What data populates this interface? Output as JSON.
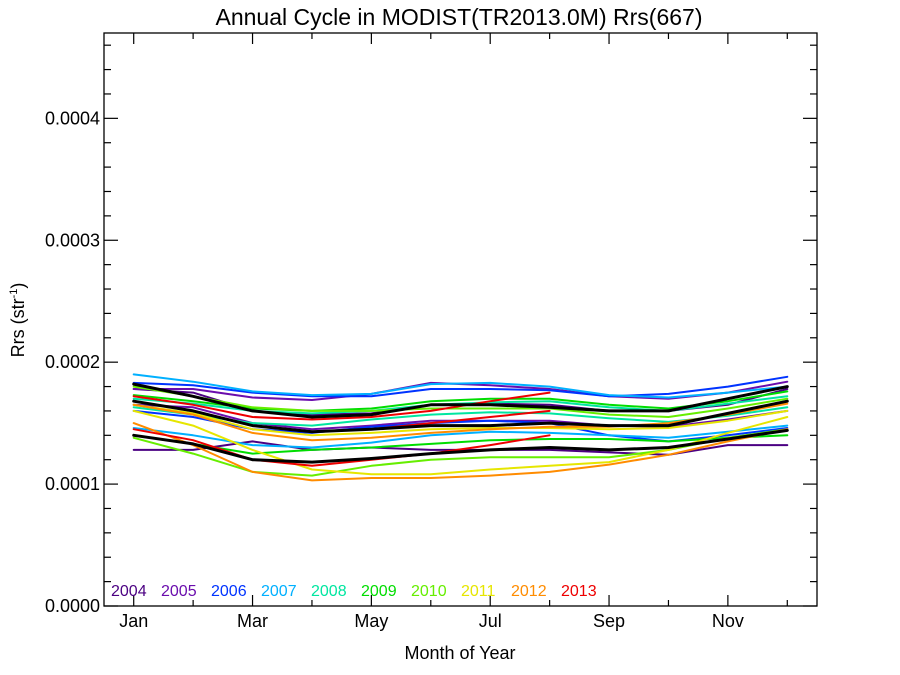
{
  "chart_data": {
    "type": "line",
    "title": "Annual Cycle in MODIST(TR2013.0M) Rrs(667)",
    "xlabel": "Month of Year",
    "ylabel_main": "Rrs (str",
    "ylabel_sup": "-1",
    "ylabel_close": ")",
    "xlim": [
      0.5,
      12.5
    ],
    "ylim": [
      0,
      0.00047
    ],
    "x_ticks": [
      {
        "value": 1,
        "label": "Jan"
      },
      {
        "value": 3,
        "label": "Mar"
      },
      {
        "value": 5,
        "label": "May"
      },
      {
        "value": 7,
        "label": "Jul"
      },
      {
        "value": 9,
        "label": "Sep"
      },
      {
        "value": 11,
        "label": "Nov"
      }
    ],
    "y_ticks": [
      {
        "value": 0.0,
        "label": "0.0000"
      },
      {
        "value": 0.0001,
        "label": "0.0001"
      },
      {
        "value": 0.0002,
        "label": "0.0002"
      },
      {
        "value": 0.0003,
        "label": "0.0003"
      },
      {
        "value": 0.0004,
        "label": "0.0004"
      }
    ],
    "legend_position": "bottom-left, inside plot",
    "series": [
      {
        "name": "2004",
        "color": "#4b0082",
        "lines": [
          [
            0.000128,
            0.000128,
            0.000135,
            0.000128,
            0.00013,
            0.000128,
            0.000128,
            0.000128,
            0.000126,
            0.000124,
            0.000132,
            0.000132
          ],
          [
            0.000178,
            0.000175,
            0.00016,
            0.000157,
            0.000158,
            0.000165,
            0.000166,
            0.000165,
            0.00016,
            0.00016,
            0.000165,
            0.000178
          ]
        ]
      },
      {
        "name": "2005",
        "color": "#6a0dad",
        "lines": [
          [
            0.000178,
            0.000178,
            0.000171,
            0.000169,
            0.000174,
            0.000183,
            0.000181,
            0.000178,
            0.000172,
            0.00017,
            0.000175,
            0.000184
          ],
          [
            0.000165,
            0.000163,
            0.00015,
            0.000145,
            0.000148,
            0.000152,
            0.000152,
            0.000152,
            0.000148,
            0.000147,
            0.000153,
            0.00016
          ]
        ]
      },
      {
        "name": "2006",
        "color": "#0033ff",
        "lines": [
          [
            0.000183,
            0.000181,
            0.000175,
            0.000172,
            0.000172,
            0.000178,
            0.000178,
            0.000177,
            0.000172,
            0.000174,
            0.00018,
            0.000188
          ],
          [
            0.00016,
            0.000155,
            0.000145,
            0.000142,
            0.000147,
            0.00015,
            0.000152,
            0.00015,
            0.00014,
            0.000135,
            0.00014,
            0.000146
          ]
        ]
      },
      {
        "name": "2007",
        "color": "#00b0ff",
        "lines": [
          [
            0.00019,
            0.000184,
            0.000176,
            0.000173,
            0.000174,
            0.000182,
            0.000183,
            0.00018,
            0.000173,
            0.000171,
            0.000175,
            0.00018
          ],
          [
            0.000146,
            0.00014,
            0.000132,
            0.00013,
            0.000134,
            0.00014,
            0.000143,
            0.000142,
            0.00014,
            0.000138,
            0.000143,
            0.000148
          ]
        ]
      },
      {
        "name": "2008",
        "color": "#00e6a0",
        "lines": [
          [
            0.00017,
            0.000166,
            0.00016,
            0.000158,
            0.00016,
            0.000165,
            0.000167,
            0.000168,
            0.000163,
            0.00016,
            0.000166,
            0.000172
          ],
          [
            0.000163,
            0.000157,
            0.00015,
            0.000148,
            0.000153,
            0.000157,
            0.000159,
            0.000158,
            0.000154,
            0.000151,
            0.000156,
            0.000163
          ]
        ]
      },
      {
        "name": "2009",
        "color": "#00dd00",
        "lines": [
          [
            0.000173,
            0.000168,
            0.000162,
            0.00016,
            0.000162,
            0.000168,
            0.00017,
            0.00017,
            0.000165,
            0.000162,
            0.000168,
            0.000176
          ],
          [
            0.00014,
            0.000133,
            0.000125,
            0.000128,
            0.00013,
            0.000133,
            0.000136,
            0.000137,
            0.000137,
            0.000135,
            0.000138,
            0.00014
          ]
        ]
      },
      {
        "name": "2010",
        "color": "#66ee00",
        "lines": [
          [
            0.000138,
            0.000125,
            0.00011,
            0.000107,
            0.000115,
            0.00012,
            0.000122,
            0.000122,
            0.000122,
            0.000128,
            0.000138,
            0.000145
          ],
          [
            0.00018,
            0.000172,
            0.000163,
            0.00016,
            0.00016,
            0.000162,
            0.000162,
            0.000162,
            0.000157,
            0.000155,
            0.000162,
            0.00017
          ]
        ]
      },
      {
        "name": "2011",
        "color": "#e6e600",
        "lines": [
          [
            0.00016,
            0.000148,
            0.000128,
            0.000112,
            0.000108,
            0.000108,
            0.000112,
            0.000115,
            0.000118,
            0.000128,
            0.000142,
            0.000155
          ],
          [
            0.000165,
            0.000158,
            0.000145,
            0.00014,
            0.000142,
            0.000145,
            0.000146,
            0.000146,
            0.000145,
            0.000146,
            0.000152,
            0.00016
          ]
        ]
      },
      {
        "name": "2012",
        "color": "#ff8c00",
        "lines": [
          [
            0.00015,
            0.000132,
            0.00011,
            0.000103,
            0.000105,
            0.000105,
            0.000107,
            0.00011,
            0.000116,
            0.000124,
            0.000135,
            0.000145
          ],
          [
            0.000165,
            0.000157,
            0.000142,
            0.000136,
            0.000138,
            0.000142,
            0.000145,
            0.000147,
            0.000147,
            0.00015,
            0.000157,
            0.000166
          ]
        ]
      },
      {
        "name": "2013",
        "color": "#ee0000",
        "lines": [
          [
            0.000145,
            0.000136,
            0.00012,
            0.000115,
            0.00012,
            0.000125,
            0.000132,
            0.00014
          ],
          [
            0.000168,
            0.00016,
            0.000148,
            0.000143,
            0.000145,
            0.00015,
            0.000155,
            0.00016
          ],
          [
            0.000172,
            0.000165,
            0.000155,
            0.000153,
            0.000155,
            0.00016,
            0.000168,
            0.000175
          ]
        ]
      }
    ],
    "climatology": {
      "color": "#000000",
      "lines": [
        [
          0.000182,
          0.000172,
          0.00016,
          0.000155,
          0.000157,
          0.000165,
          0.000165,
          0.000163,
          0.00016,
          0.00016,
          0.00017,
          0.00018
        ],
        [
          0.000168,
          0.00016,
          0.000148,
          0.000143,
          0.000145,
          0.000148,
          0.000148,
          0.00015,
          0.000148,
          0.000148,
          0.000158,
          0.000168
        ],
        [
          0.00014,
          0.000133,
          0.00012,
          0.000118,
          0.000121,
          0.000125,
          0.000128,
          0.00013,
          0.000128,
          0.00013,
          0.000137,
          0.000144
        ]
      ]
    }
  }
}
